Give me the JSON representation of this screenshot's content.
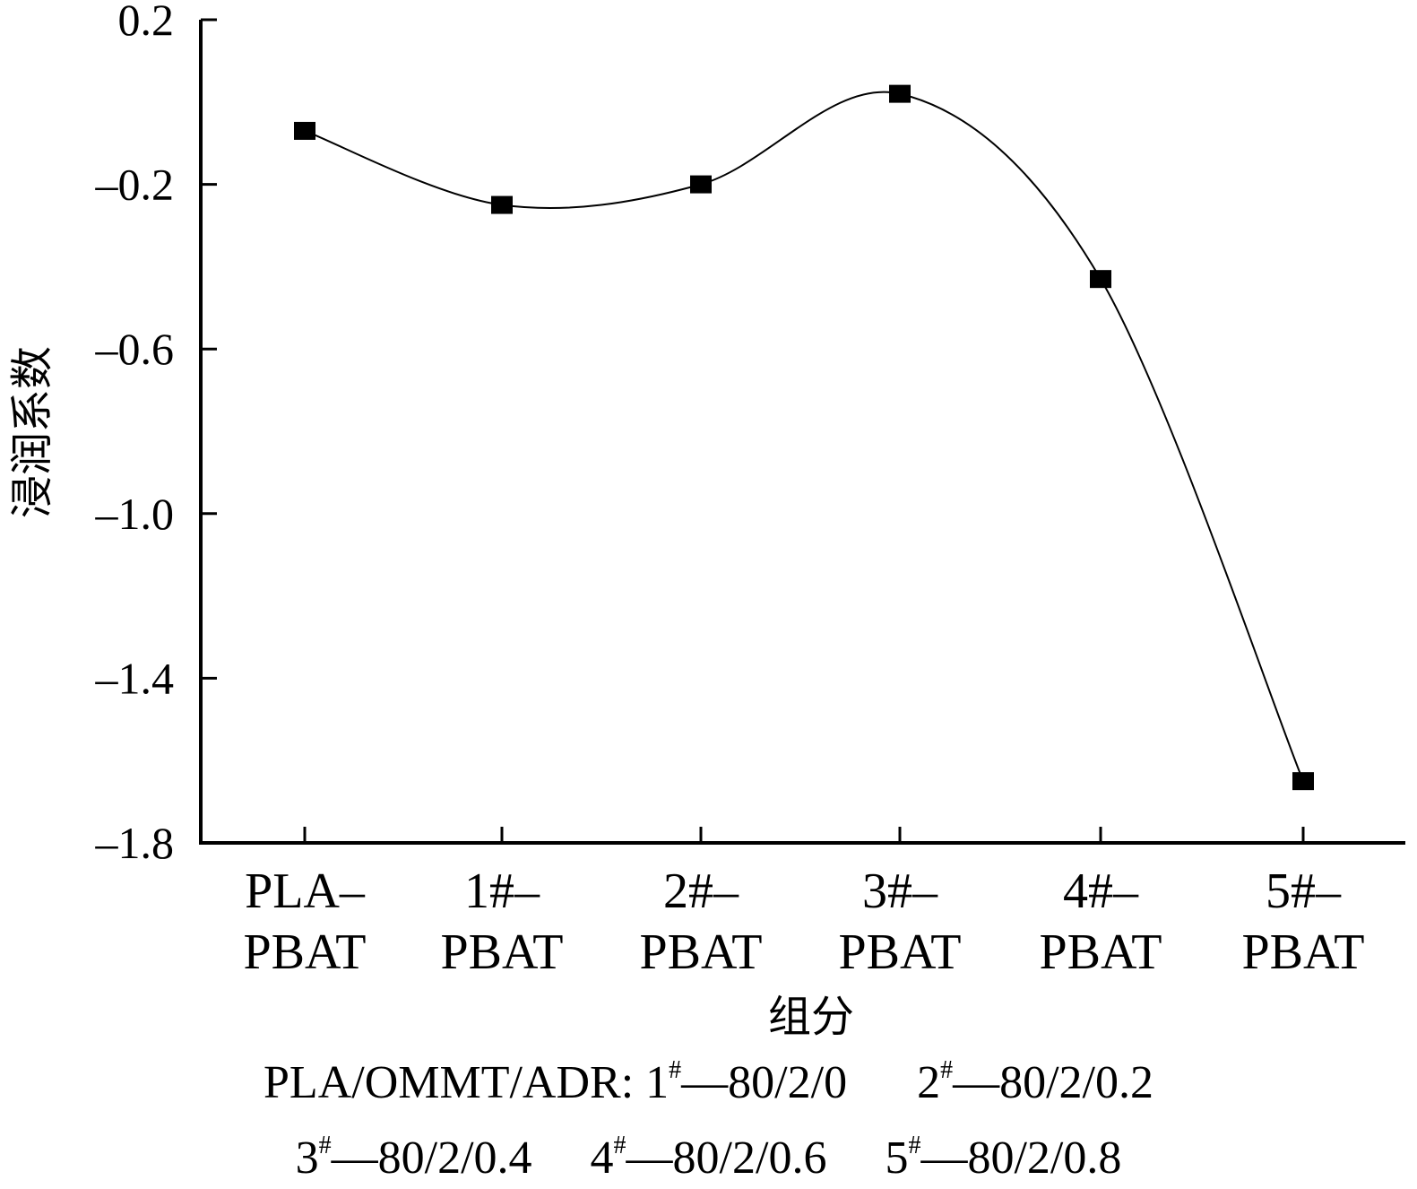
{
  "chart_data": {
    "type": "line",
    "categories": [
      [
        "PLA–",
        "PBAT"
      ],
      [
        "1#–",
        "PBAT"
      ],
      [
        "2#–",
        "PBAT"
      ],
      [
        "3#–",
        "PBAT"
      ],
      [
        "4#–",
        "PBAT"
      ],
      [
        "5#–",
        "PBAT"
      ]
    ],
    "values": [
      -0.07,
      -0.25,
      -0.2,
      0.02,
      -0.43,
      -1.65
    ],
    "xlabel": "组分",
    "ylabel": "浸润系数",
    "ylim": [
      -1.8,
      0.2
    ],
    "yticks": [
      0.2,
      -0.2,
      -0.6,
      -1.0,
      -1.4,
      -1.8
    ],
    "ytick_labels": [
      "0.2",
      "–0.2",
      "–0.6",
      "–1.0",
      "–1.4",
      "–1.8"
    ],
    "marker": "square",
    "smooth": true,
    "grid": false,
    "colors": {
      "line": "#000000",
      "marker": "#000000"
    }
  },
  "note": {
    "line1": "PLA/OMMT/ADR: 1#—80/2/0      2#—80/2/0.2",
    "line2": "3#—80/2/0.4     4#—80/2/0.6     5#—80/2/0.8"
  }
}
